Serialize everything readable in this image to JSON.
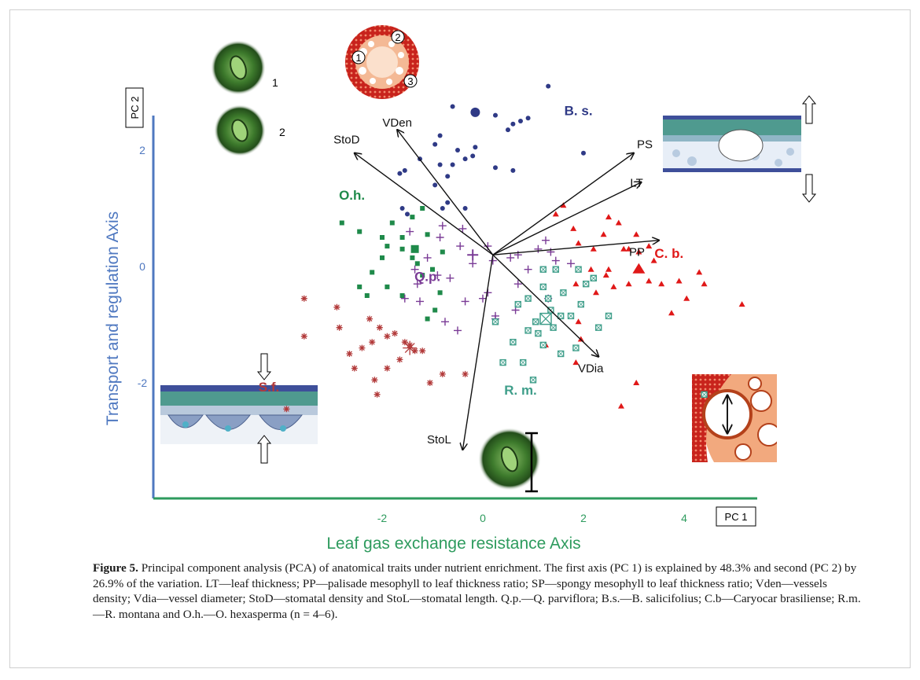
{
  "figure": {
    "caption_label": "Figure 5.",
    "caption_text": " Principal component analysis (PCA) of anatomical traits under nutrient enrichment. The first axis (PC 1) is explained by 48.3% and second (PC 2) by 26.9% of the variation. LT—leaf thickness; PP—palisade mesophyll to leaf thickness ratio; SP—spongy mesophyll to leaf thickness ratio; Vden—vessels density; Vdia—vessel diameter; StoD—stomatal density and StoL—stomatal length. Q.p.—Q. parviflora; B.s.—B. salicifolius; C.b—Caryocar brasiliense; R.m.—R. montana and O.h.—O. hexasperma (n = 4–6).",
    "inset_labels": [
      "1",
      "2",
      "1",
      "2",
      "3"
    ]
  },
  "colors": {
    "axis_line_y": "#4f78c0",
    "axis_line_x": "#2e9b5e",
    "B.s.": "#2f3a86",
    "O.h.": "#1f8a4a",
    "Q.p.": "#7a3b96",
    "C.b.": "#e01818",
    "S.f.": "#b23a3a",
    "R.m.": "#3f9e8a",
    "vector": "#111111"
  },
  "chart_data": {
    "type": "scatter",
    "subtype": "pca_biplot",
    "title": "",
    "xlabel": "Leaf gas exchange resistance Axis",
    "ylabel": "Transport and regulation Axis",
    "x_axis_tag": "PC 1",
    "y_axis_tag": "PC 2",
    "xlim": [
      -3.9,
      5.4
    ],
    "ylim": [
      -3.75,
      3.3
    ],
    "x_ticks": [
      -2,
      0,
      2,
      4
    ],
    "y_ticks": [
      -2,
      0,
      2
    ],
    "grid": false,
    "series": [
      {
        "name": "B. s.",
        "marker": "circle",
        "label_pos": [
          1.9,
          2.6
        ],
        "points": [
          [
            1.3,
            3.1
          ],
          [
            -0.6,
            2.75
          ],
          [
            0.25,
            2.6
          ],
          [
            0.9,
            2.55
          ],
          [
            0.6,
            2.45
          ],
          [
            0.75,
            2.5
          ],
          [
            0.5,
            2.35
          ],
          [
            -0.85,
            2.25
          ],
          [
            -0.95,
            2.1
          ],
          [
            -0.5,
            2.0
          ],
          [
            -0.15,
            2.05
          ],
          [
            -0.2,
            1.9
          ],
          [
            -0.35,
            1.85
          ],
          [
            -0.6,
            1.75
          ],
          [
            -0.85,
            1.75
          ],
          [
            2.0,
            1.95
          ],
          [
            -1.25,
            1.85
          ],
          [
            0.25,
            1.7
          ],
          [
            0.6,
            1.65
          ],
          [
            -1.55,
            1.65
          ],
          [
            -1.65,
            1.6
          ],
          [
            -0.7,
            1.55
          ],
          [
            -0.95,
            1.4
          ],
          [
            -0.7,
            1.1
          ],
          [
            -0.35,
            1.0
          ],
          [
            -1.6,
            1.0
          ],
          [
            -0.8,
            1.0
          ],
          [
            -1.5,
            0.9
          ]
        ]
      },
      {
        "name": "O.h.",
        "marker": "square",
        "label_pos": [
          -2.6,
          1.15
        ],
        "points": [
          [
            -1.2,
            1.0
          ],
          [
            -1.4,
            0.85
          ],
          [
            -1.8,
            0.75
          ],
          [
            -2.45,
            0.6
          ],
          [
            -2.8,
            0.75
          ],
          [
            -1.1,
            0.55
          ],
          [
            -1.6,
            0.5
          ],
          [
            -2.0,
            0.5
          ],
          [
            -1.9,
            0.35
          ],
          [
            -1.6,
            0.3
          ],
          [
            -2.0,
            0.15
          ],
          [
            -1.4,
            0.15
          ],
          [
            -0.8,
            0.25
          ],
          [
            -1.3,
            0.05
          ],
          [
            -1.0,
            -0.05
          ],
          [
            -2.2,
            -0.1
          ],
          [
            -1.2,
            -0.15
          ],
          [
            -1.9,
            -0.35
          ],
          [
            -2.45,
            -0.35
          ],
          [
            -2.3,
            -0.5
          ],
          [
            -1.6,
            -0.5
          ],
          [
            -0.85,
            -0.45
          ],
          [
            -0.95,
            -0.75
          ],
          [
            -1.1,
            -0.9
          ]
        ]
      },
      {
        "name": "Q.p.",
        "marker": "plus",
        "label_pos": [
          -1.1,
          -0.25
        ],
        "points": [
          [
            -0.4,
            0.65
          ],
          [
            -0.85,
            0.5
          ],
          [
            -1.45,
            0.6
          ],
          [
            -0.8,
            0.7
          ],
          [
            -0.45,
            0.35
          ],
          [
            0.1,
            0.35
          ],
          [
            -0.2,
            0.05
          ],
          [
            -1.1,
            0.15
          ],
          [
            -1.35,
            -0.05
          ],
          [
            -0.9,
            -0.15
          ],
          [
            -0.65,
            -0.2
          ],
          [
            -1.3,
            -0.3
          ],
          [
            -1.55,
            -0.55
          ],
          [
            -1.25,
            -0.6
          ],
          [
            -0.75,
            -0.95
          ],
          [
            -0.5,
            -1.1
          ],
          [
            0.1,
            -0.45
          ],
          [
            -0.35,
            -0.6
          ],
          [
            0.0,
            -0.55
          ],
          [
            0.25,
            -0.85
          ],
          [
            0.55,
            0.15
          ],
          [
            0.7,
            0.2
          ],
          [
            1.1,
            0.3
          ],
          [
            1.35,
            0.25
          ],
          [
            1.25,
            0.45
          ],
          [
            1.45,
            0.1
          ],
          [
            1.75,
            0.05
          ],
          [
            0.9,
            -0.05
          ],
          [
            0.7,
            -0.3
          ],
          [
            1.3,
            -0.55
          ],
          [
            0.65,
            -0.75
          ],
          [
            0.25,
            -0.9
          ],
          [
            0.2,
            0.1
          ]
        ]
      },
      {
        "name": "C. b.",
        "marker": "triangle",
        "label_pos": [
          3.7,
          0.15
        ],
        "points": [
          [
            1.6,
            1.05
          ],
          [
            1.45,
            0.9
          ],
          [
            2.5,
            0.85
          ],
          [
            1.8,
            0.65
          ],
          [
            2.4,
            0.55
          ],
          [
            2.7,
            0.75
          ],
          [
            3.05,
            0.55
          ],
          [
            2.9,
            0.3
          ],
          [
            1.9,
            0.4
          ],
          [
            2.2,
            0.3
          ],
          [
            2.8,
            0.3
          ],
          [
            3.1,
            0.25
          ],
          [
            3.3,
            0.35
          ],
          [
            2.15,
            -0.05
          ],
          [
            2.5,
            -0.05
          ],
          [
            3.4,
            0.1
          ],
          [
            1.85,
            -0.3
          ],
          [
            2.45,
            -0.15
          ],
          [
            2.6,
            -0.35
          ],
          [
            3.3,
            -0.25
          ],
          [
            3.55,
            -0.3
          ],
          [
            3.9,
            -0.25
          ],
          [
            4.4,
            -0.3
          ],
          [
            4.05,
            -0.55
          ],
          [
            2.25,
            -0.45
          ],
          [
            2.9,
            -0.3
          ],
          [
            4.3,
            -0.1
          ],
          [
            3.75,
            -0.8
          ],
          [
            1.9,
            -0.95
          ],
          [
            1.95,
            -1.25
          ],
          [
            1.25,
            -1.35
          ],
          [
            1.85,
            -1.65
          ],
          [
            3.05,
            -2.0
          ],
          [
            2.75,
            -2.4
          ],
          [
            5.15,
            -0.65
          ]
        ]
      },
      {
        "name": "S.f.",
        "marker": "asterisk",
        "label_pos": [
          -4.25,
          -2.15
        ],
        "points": [
          [
            -3.55,
            -0.55
          ],
          [
            -3.55,
            -1.2
          ],
          [
            -2.9,
            -0.7
          ],
          [
            -2.85,
            -1.05
          ],
          [
            -2.65,
            -1.5
          ],
          [
            -2.25,
            -0.9
          ],
          [
            -2.05,
            -1.05
          ],
          [
            -2.2,
            -1.3
          ],
          [
            -2.4,
            -1.4
          ],
          [
            -1.9,
            -1.2
          ],
          [
            -1.75,
            -1.15
          ],
          [
            -2.55,
            -1.75
          ],
          [
            -2.15,
            -1.95
          ],
          [
            -1.65,
            -1.6
          ],
          [
            -1.55,
            -1.3
          ],
          [
            -1.9,
            -1.75
          ],
          [
            -2.1,
            -2.2
          ],
          [
            -1.05,
            -2.0
          ],
          [
            -0.8,
            -1.85
          ],
          [
            -3.9,
            -2.45
          ],
          [
            -0.35,
            -1.85
          ],
          [
            -1.45,
            -1.35
          ],
          [
            -1.35,
            -1.45
          ],
          [
            -1.2,
            -1.45
          ]
        ]
      },
      {
        "name": "R. m.",
        "marker": "boxed_square",
        "label_pos": [
          0.75,
          -2.2
        ],
        "points": [
          [
            1.2,
            -0.05
          ],
          [
            1.45,
            -0.05
          ],
          [
            1.9,
            -0.05
          ],
          [
            2.05,
            -0.3
          ],
          [
            2.2,
            -0.2
          ],
          [
            1.2,
            -0.35
          ],
          [
            1.6,
            -0.45
          ],
          [
            1.3,
            -0.55
          ],
          [
            0.9,
            -0.55
          ],
          [
            0.7,
            -0.65
          ],
          [
            1.35,
            -0.75
          ],
          [
            1.55,
            -0.85
          ],
          [
            1.75,
            -0.85
          ],
          [
            1.95,
            -0.65
          ],
          [
            1.05,
            -0.95
          ],
          [
            1.4,
            -1.05
          ],
          [
            0.9,
            -1.1
          ],
          [
            1.1,
            -1.15
          ],
          [
            0.25,
            -0.95
          ],
          [
            0.6,
            -1.3
          ],
          [
            1.2,
            -1.35
          ],
          [
            1.55,
            -1.5
          ],
          [
            1.85,
            -1.4
          ],
          [
            0.4,
            -1.65
          ],
          [
            0.8,
            -1.65
          ],
          [
            1.0,
            -1.95
          ],
          [
            2.3,
            -1.05
          ],
          [
            2.5,
            -0.85
          ],
          [
            4.4,
            -2.2
          ]
        ]
      }
    ],
    "loadings": [
      {
        "name": "VDen",
        "x": -1.7,
        "y": 2.35
      },
      {
        "name": "StoD",
        "x": -2.55,
        "y": 1.95
      },
      {
        "name": "PS",
        "x": 3.0,
        "y": 1.95
      },
      {
        "name": "LT",
        "x": 3.15,
        "y": 1.45
      },
      {
        "name": "PP",
        "x": 3.5,
        "y": 0.45
      },
      {
        "name": "VDia",
        "x": 2.3,
        "y": -1.55
      },
      {
        "name": "StoL",
        "x": -0.4,
        "y": -3.15
      }
    ],
    "loadings_origin": [
      0.2,
      0.2
    ]
  }
}
